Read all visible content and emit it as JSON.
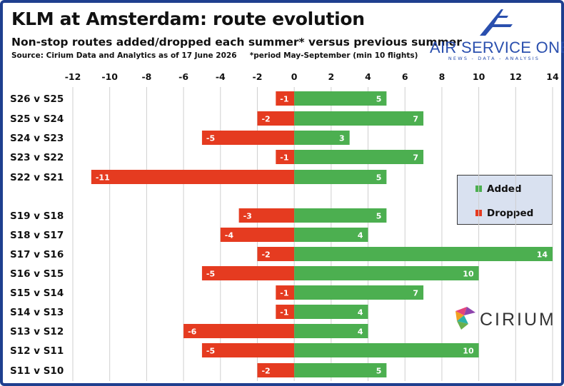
{
  "header": {
    "title": "KLM at Amsterdam: route evolution",
    "subtitle": "Non-stop routes added/dropped each summer* versus previous summer",
    "source": "Source: Cirium Data and Analytics as of 17 June 2026     *period May-September (min 10 flights)"
  },
  "brand": {
    "name": "AIR SERVICE ONE",
    "tagline": "NEWS - DATA - ANALYSIS",
    "color": "#2a4fae"
  },
  "partner": {
    "name": "CIRIUM"
  },
  "legend": {
    "added_label": "Added",
    "dropped_label": "Dropped"
  },
  "colors": {
    "added": "#4caf50",
    "dropped": "#e53b20"
  },
  "chart_data": {
    "type": "bar",
    "orientation": "horizontal",
    "xlim": [
      -12,
      14
    ],
    "x_ticks": [
      -12,
      -10,
      -8,
      -6,
      -4,
      -2,
      0,
      2,
      4,
      6,
      8,
      10,
      12,
      14
    ],
    "grid": true,
    "legend_position": "right",
    "categories": [
      "S26 v S25",
      "S25 v S24",
      "S24 v S23",
      "S23 v S22",
      "S22 v S21",
      "S19 v S18",
      "S18 v S17",
      "S17 v S16",
      "S16 v S15",
      "S15 v S14",
      "S14 v S13",
      "S13 v S12",
      "S12 v S11",
      "S11 v S10"
    ],
    "series": [
      {
        "name": "Added",
        "values": [
          5,
          7,
          3,
          7,
          5,
          5,
          4,
          14,
          10,
          7,
          4,
          4,
          10,
          5
        ]
      },
      {
        "name": "Dropped",
        "values": [
          -1,
          -2,
          -5,
          -1,
          -11,
          -3,
          -4,
          -2,
          -5,
          -1,
          -1,
          -6,
          -5,
          -2
        ]
      }
    ]
  }
}
